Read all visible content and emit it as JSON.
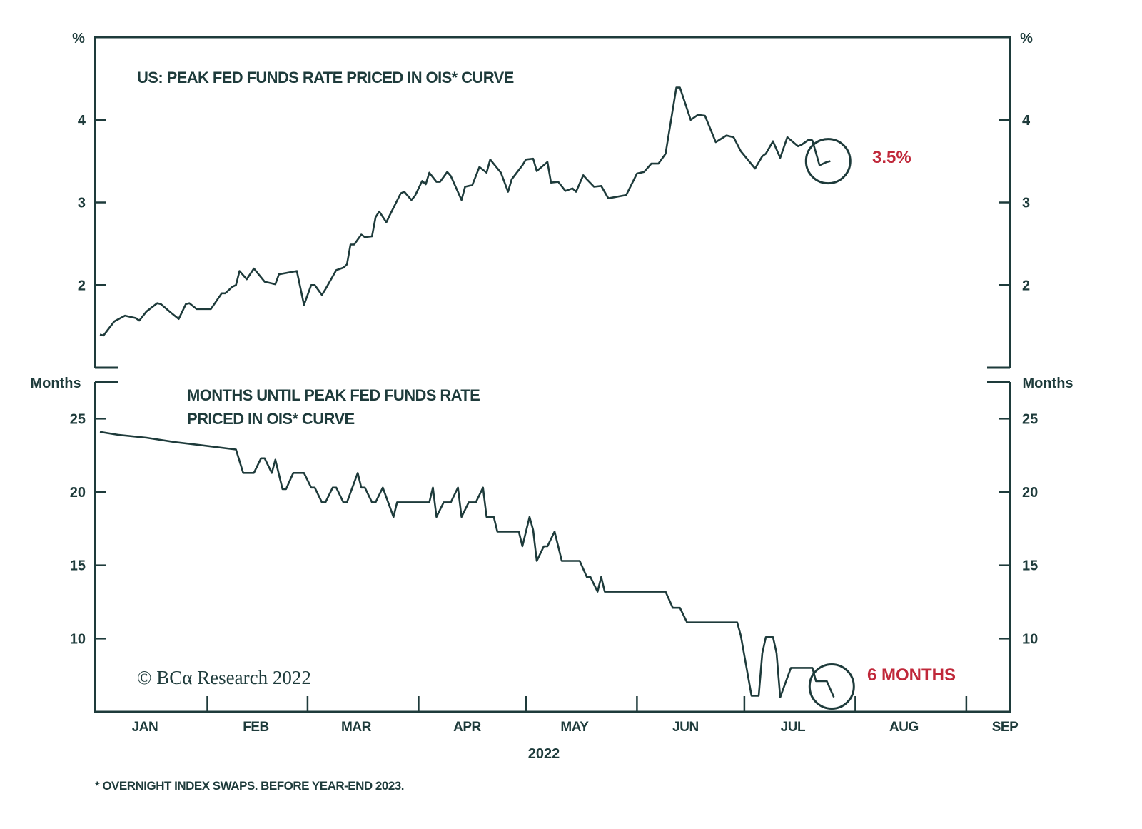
{
  "chart_data": [
    {
      "type": "line",
      "title": "US: PEAK FED FUNDS RATE PRICED IN OIS* CURVE",
      "ylabel": "%",
      "ylim": [
        1,
        5
      ],
      "yticks": [
        2,
        3,
        4
      ],
      "xlim": [
        "2022-01-01",
        "2022-09-13"
      ],
      "grid": false,
      "line_color": "#1e3b3b",
      "annotation": {
        "text": "3.5%",
        "color": "#c0283a",
        "circled_point": "2022-07-25"
      },
      "series": [
        {
          "x": [
            "2022-01-02",
            "2022-01-03",
            "2022-01-06",
            "2022-01-09",
            "2022-01-12",
            "2022-01-13",
            "2022-01-15",
            "2022-01-18",
            "2022-01-19",
            "2022-01-22",
            "2022-01-24",
            "2022-01-26",
            "2022-01-27",
            "2022-01-29",
            "2022-02-02",
            "2022-02-05",
            "2022-02-06",
            "2022-02-08",
            "2022-02-09",
            "2022-02-10",
            "2022-02-12",
            "2022-02-14",
            "2022-02-17",
            "2022-02-20",
            "2022-02-21",
            "2022-02-26",
            "2022-02-28",
            "2022-03-02",
            "2022-03-03",
            "2022-03-05",
            "2022-03-06",
            "2022-03-09",
            "2022-03-11",
            "2022-03-12",
            "2022-03-13",
            "2022-03-14",
            "2022-03-16",
            "2022-03-17",
            "2022-03-19",
            "2022-03-20",
            "2022-03-21",
            "2022-03-23",
            "2022-03-24",
            "2022-03-27",
            "2022-03-28",
            "2022-03-30",
            "2022-03-31",
            "2022-04-02",
            "2022-04-03",
            "2022-04-04",
            "2022-04-06",
            "2022-04-07",
            "2022-04-09",
            "2022-04-10",
            "2022-04-13",
            "2022-04-14",
            "2022-04-16",
            "2022-04-18",
            "2022-04-20",
            "2022-04-21",
            "2022-04-24",
            "2022-04-26",
            "2022-04-27",
            "2022-04-30",
            "2022-05-01",
            "2022-05-03",
            "2022-05-04",
            "2022-05-07",
            "2022-05-08",
            "2022-05-10",
            "2022-05-12",
            "2022-05-14",
            "2022-05-15",
            "2022-05-17",
            "2022-05-18",
            "2022-05-20",
            "2022-05-22",
            "2022-05-24",
            "2022-05-29",
            "2022-06-01",
            "2022-06-03",
            "2022-06-05",
            "2022-06-07",
            "2022-06-09",
            "2022-06-12",
            "2022-06-13",
            "2022-06-16",
            "2022-06-18",
            "2022-06-20",
            "2022-06-23",
            "2022-06-26",
            "2022-06-28",
            "2022-06-30",
            "2022-07-04",
            "2022-07-06",
            "2022-07-07",
            "2022-07-09",
            "2022-07-11",
            "2022-07-13",
            "2022-07-16",
            "2022-07-17",
            "2022-07-19",
            "2022-07-20",
            "2022-07-22",
            "2022-07-24",
            "2022-07-25"
          ],
          "y": [
            1.4,
            1.39,
            1.56,
            1.63,
            1.6,
            1.57,
            1.68,
            1.78,
            1.77,
            1.66,
            1.59,
            1.77,
            1.78,
            1.71,
            1.71,
            1.9,
            1.9,
            1.98,
            2.0,
            2.17,
            2.07,
            2.2,
            2.04,
            2.01,
            2.13,
            2.17,
            1.76,
            2.0,
            2.0,
            1.88,
            1.95,
            2.18,
            2.21,
            2.25,
            2.49,
            2.49,
            2.61,
            2.58,
            2.59,
            2.82,
            2.89,
            2.76,
            2.85,
            3.11,
            3.13,
            3.03,
            3.08,
            3.26,
            3.22,
            3.36,
            3.25,
            3.25,
            3.37,
            3.32,
            3.03,
            3.19,
            3.21,
            3.43,
            3.36,
            3.52,
            3.36,
            3.13,
            3.28,
            3.45,
            3.52,
            3.53,
            3.38,
            3.49,
            3.24,
            3.25,
            3.14,
            3.17,
            3.13,
            3.33,
            3.28,
            3.19,
            3.2,
            3.05,
            3.09,
            3.35,
            3.37,
            3.47,
            3.47,
            3.59,
            4.39,
            4.39,
            4.0,
            4.06,
            4.05,
            3.73,
            3.81,
            3.79,
            3.62,
            3.41,
            3.56,
            3.59,
            3.74,
            3.54,
            3.79,
            3.68,
            3.7,
            3.76,
            3.75,
            3.45,
            3.49,
            3.5
          ]
        }
      ]
    },
    {
      "type": "line",
      "title": "MONTHS UNTIL PEAK FED FUNDS RATE PRICED IN OIS* CURVE",
      "title_lines": [
        "MONTHS UNTIL PEAK FED FUNDS RATE",
        "PRICED IN OIS* CURVE"
      ],
      "ylabel": "Months",
      "ylim": [
        5,
        27.5
      ],
      "yticks": [
        10,
        15,
        20,
        25
      ],
      "xlim": [
        "2022-01-01",
        "2022-09-13"
      ],
      "grid": false,
      "line_color": "#1e3b3b",
      "annotation": {
        "text": "6 MONTHS",
        "color": "#c0283a",
        "circled_point": "2022-07-26"
      },
      "series": [
        {
          "x": [
            "2022-01-02",
            "2022-01-07",
            "2022-01-15",
            "2022-01-23",
            "2022-01-30",
            "2022-02-09",
            "2022-02-11",
            "2022-02-14",
            "2022-02-16",
            "2022-02-17",
            "2022-02-19",
            "2022-02-20",
            "2022-02-22",
            "2022-02-23",
            "2022-02-25",
            "2022-02-28",
            "2022-03-02",
            "2022-03-03",
            "2022-03-05",
            "2022-03-06",
            "2022-03-08",
            "2022-03-09",
            "2022-03-11",
            "2022-03-12",
            "2022-03-15",
            "2022-03-16",
            "2022-03-17",
            "2022-03-19",
            "2022-03-20",
            "2022-03-22",
            "2022-03-25",
            "2022-03-26",
            "2022-04-04",
            "2022-04-05",
            "2022-04-06",
            "2022-04-08",
            "2022-04-10",
            "2022-04-12",
            "2022-04-13",
            "2022-04-15",
            "2022-04-17",
            "2022-04-19",
            "2022-04-20",
            "2022-04-22",
            "2022-04-23",
            "2022-04-29",
            "2022-04-30",
            "2022-05-02",
            "2022-05-03",
            "2022-05-04",
            "2022-05-06",
            "2022-05-07",
            "2022-05-09",
            "2022-05-11",
            "2022-05-16",
            "2022-05-18",
            "2022-05-19",
            "2022-05-21",
            "2022-05-22",
            "2022-05-23",
            "2022-06-09",
            "2022-06-11",
            "2022-06-13",
            "2022-06-15",
            "2022-06-29",
            "2022-06-30",
            "2022-07-03",
            "2022-07-05",
            "2022-07-06",
            "2022-07-07",
            "2022-07-09",
            "2022-07-10",
            "2022-07-11",
            "2022-07-14",
            "2022-07-20",
            "2022-07-21",
            "2022-07-24",
            "2022-07-26"
          ],
          "y": [
            24.1,
            23.9,
            23.7,
            23.4,
            23.2,
            22.9,
            21.3,
            21.3,
            22.3,
            22.3,
            21.3,
            22.2,
            20.2,
            20.2,
            21.3,
            21.3,
            20.3,
            20.3,
            19.3,
            19.3,
            20.3,
            20.3,
            19.3,
            19.3,
            21.3,
            20.3,
            20.3,
            19.3,
            19.3,
            20.3,
            18.3,
            19.3,
            19.3,
            20.3,
            18.3,
            19.3,
            19.3,
            20.3,
            18.3,
            19.3,
            19.3,
            20.3,
            18.3,
            18.3,
            17.3,
            17.3,
            16.3,
            18.3,
            17.4,
            15.3,
            16.3,
            16.3,
            17.3,
            15.3,
            15.3,
            14.2,
            14.2,
            13.2,
            14.2,
            13.2,
            13.2,
            12.1,
            12.1,
            11.1,
            11.1,
            10.2,
            6.1,
            6.1,
            9.0,
            10.1,
            10.1,
            9.0,
            6.0,
            8.0,
            8.0,
            7.1,
            7.1,
            6.0
          ]
        }
      ]
    }
  ],
  "top_panel": {
    "title": "US: PEAK FED FUNDS RATE PRICED IN OIS* CURVE",
    "unit_left": "%",
    "unit_right": "%",
    "annotation": "3.5%"
  },
  "bottom_panel": {
    "title_line1": "MONTHS UNTIL PEAK FED FUNDS RATE",
    "title_line2": "PRICED IN OIS* CURVE",
    "unit_left": "Months",
    "unit_right": "Months",
    "annotation": "6 MONTHS"
  },
  "x_axis": {
    "months": [
      "JAN",
      "FEB",
      "MAR",
      "APR",
      "MAY",
      "JUN",
      "JUL",
      "AUG",
      "SEP"
    ],
    "year": "2022"
  },
  "copyright": "© BCα Research 2022",
  "footnote": "* OVERNIGHT INDEX SWAPS. BEFORE YEAR-END 2023.",
  "colors": {
    "line": "#1e3b3b",
    "annotation": "#c0283a"
  }
}
